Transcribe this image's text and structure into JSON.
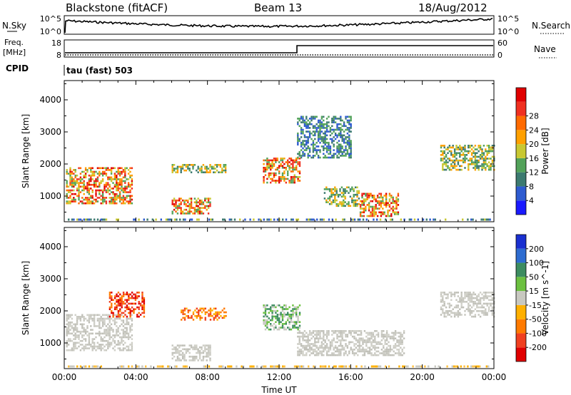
{
  "header": {
    "title": "Blackstone (fitACF)",
    "beam": "Beam 13",
    "date": "18/Aug/2012"
  },
  "nsky_panel": {
    "left_label": "N.Sky",
    "right_label": "N.Search",
    "left_ticks": [
      "10^5",
      "10^0"
    ],
    "right_ticks": [
      "10^5",
      "10^0"
    ]
  },
  "freq_panel": {
    "left_label_line1": "Freq.",
    "left_label_line2": "[MHz]",
    "right_label": "Nave",
    "left_ticks": [
      "18",
      "8"
    ],
    "right_ticks": [
      "60",
      "0"
    ]
  },
  "cpid": {
    "label": "CPID",
    "mode": "tau (fast) 503"
  },
  "chart_data": [
    {
      "type": "heatmap",
      "name": "power",
      "ylabel": "Slant Range [km]",
      "ylim": [
        200,
        4600
      ],
      "yticks": [
        1000,
        2000,
        3000,
        4000
      ],
      "xlim": [
        0,
        24
      ],
      "colorbar": {
        "label": "Power [dB]",
        "ticks": [
          "4",
          "8",
          "12",
          "16",
          "20",
          "24",
          "28"
        ],
        "colors": [
          "#1a1aff",
          "#2e5bd0",
          "#3c7a70",
          "#52a25a",
          "#c8c832",
          "#ffa000",
          "#ff6a00",
          "#f03020",
          "#e00000"
        ]
      },
      "echo_regions": [
        {
          "t0": 0.1,
          "t1": 3.8,
          "r0": 800,
          "r1": 1900,
          "level": "high"
        },
        {
          "t0": 6.0,
          "t1": 8.2,
          "r0": 450,
          "r1": 950,
          "level": "high"
        },
        {
          "t0": 6.0,
          "t1": 9.0,
          "r0": 1750,
          "r1": 2000,
          "level": "medium"
        },
        {
          "t0": 11.1,
          "t1": 13.2,
          "r0": 1400,
          "r1": 2200,
          "level": "high"
        },
        {
          "t0": 13.0,
          "t1": 16.0,
          "r0": 2200,
          "r1": 3500,
          "level": "low"
        },
        {
          "t0": 14.5,
          "t1": 16.5,
          "r0": 700,
          "r1": 1300,
          "level": "medium"
        },
        {
          "t0": 16.5,
          "t1": 18.7,
          "r0": 400,
          "r1": 1100,
          "level": "high"
        },
        {
          "t0": 21.0,
          "t1": 24.0,
          "r0": 1800,
          "r1": 2600,
          "level": "medium"
        }
      ]
    },
    {
      "type": "heatmap",
      "name": "velocity",
      "ylabel": "Slant Range [km]",
      "ylim": [
        200,
        4600
      ],
      "yticks": [
        1000,
        2000,
        3000,
        4000
      ],
      "xlim": [
        0,
        24
      ],
      "xlabel": "Time UT",
      "xticks": [
        "00:00",
        "04:00",
        "08:00",
        "12:00",
        "16:00",
        "20:00",
        "00:00"
      ],
      "colorbar": {
        "label": "Velocity [m s^-1]",
        "ticks": [
          "200",
          "100",
          "50",
          "15",
          "-15",
          "-50",
          "-100",
          "-200"
        ],
        "colors": [
          "#1a30d0",
          "#2e6cd0",
          "#3c8c60",
          "#6cc040",
          "#c8c8c0",
          "#ffb000",
          "#ff7a00",
          "#f04020",
          "#e00000"
        ]
      },
      "echo_regions": [
        {
          "t0": 0.1,
          "t1": 3.8,
          "r0": 800,
          "r1": 1900,
          "level": "ground"
        },
        {
          "t0": 2.5,
          "t1": 4.5,
          "r0": 1800,
          "r1": 2600,
          "level": "away-fast"
        },
        {
          "t0": 6.0,
          "t1": 8.2,
          "r0": 450,
          "r1": 950,
          "level": "ground"
        },
        {
          "t0": 6.5,
          "t1": 9.0,
          "r0": 1750,
          "r1": 2100,
          "level": "away"
        },
        {
          "t0": 11.1,
          "t1": 13.2,
          "r0": 1400,
          "r1": 2200,
          "level": "toward-slow"
        },
        {
          "t0": 13.0,
          "t1": 19.0,
          "r0": 600,
          "r1": 1400,
          "level": "ground"
        },
        {
          "t0": 21.0,
          "t1": 24.0,
          "r0": 1800,
          "r1": 2600,
          "level": "ground"
        }
      ]
    }
  ]
}
